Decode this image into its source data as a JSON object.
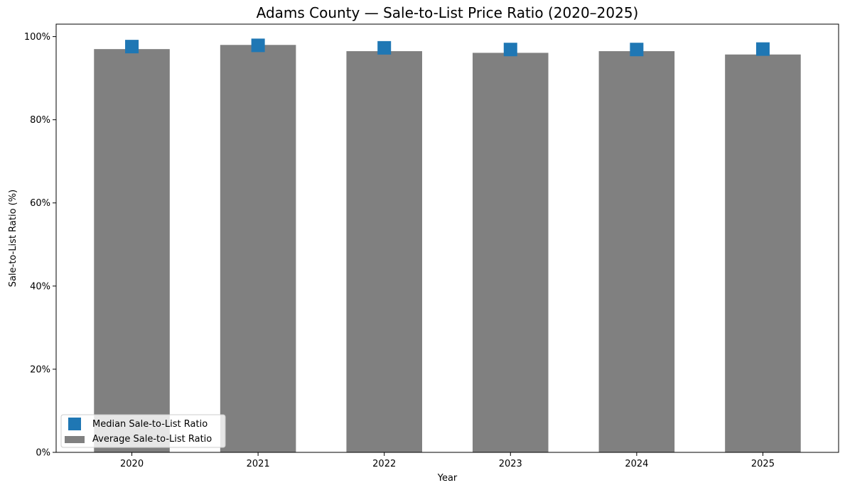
{
  "chart_data": {
    "type": "bar",
    "title": "Adams County — Sale-to-List Price Ratio (2020–2025)",
    "xlabel": "Year",
    "ylabel": "Sale-to-List Ratio (%)",
    "ylim": [
      0,
      103
    ],
    "yticks": [
      0,
      20,
      40,
      60,
      80,
      100
    ],
    "ytick_labels": [
      "0%",
      "20%",
      "40%",
      "60%",
      "80%",
      "100%"
    ],
    "categories": [
      "2020",
      "2021",
      "2022",
      "2023",
      "2024",
      "2025"
    ],
    "series": [
      {
        "name": "Average Sale-to-List Ratio",
        "kind": "bar",
        "color": "#808080",
        "values": [
          97.0,
          98.0,
          96.5,
          96.1,
          96.5,
          95.7
        ]
      },
      {
        "name": "Median Sale-to-List Ratio",
        "kind": "marker",
        "marker": "square",
        "color": "#1f77b4",
        "values": [
          97.6,
          97.9,
          97.3,
          96.9,
          96.9,
          97.0
        ]
      }
    ],
    "legend": {
      "position": "bottom-left",
      "order": [
        "Median Sale-to-List Ratio",
        "Average Sale-to-List Ratio"
      ]
    },
    "grid": false
  }
}
